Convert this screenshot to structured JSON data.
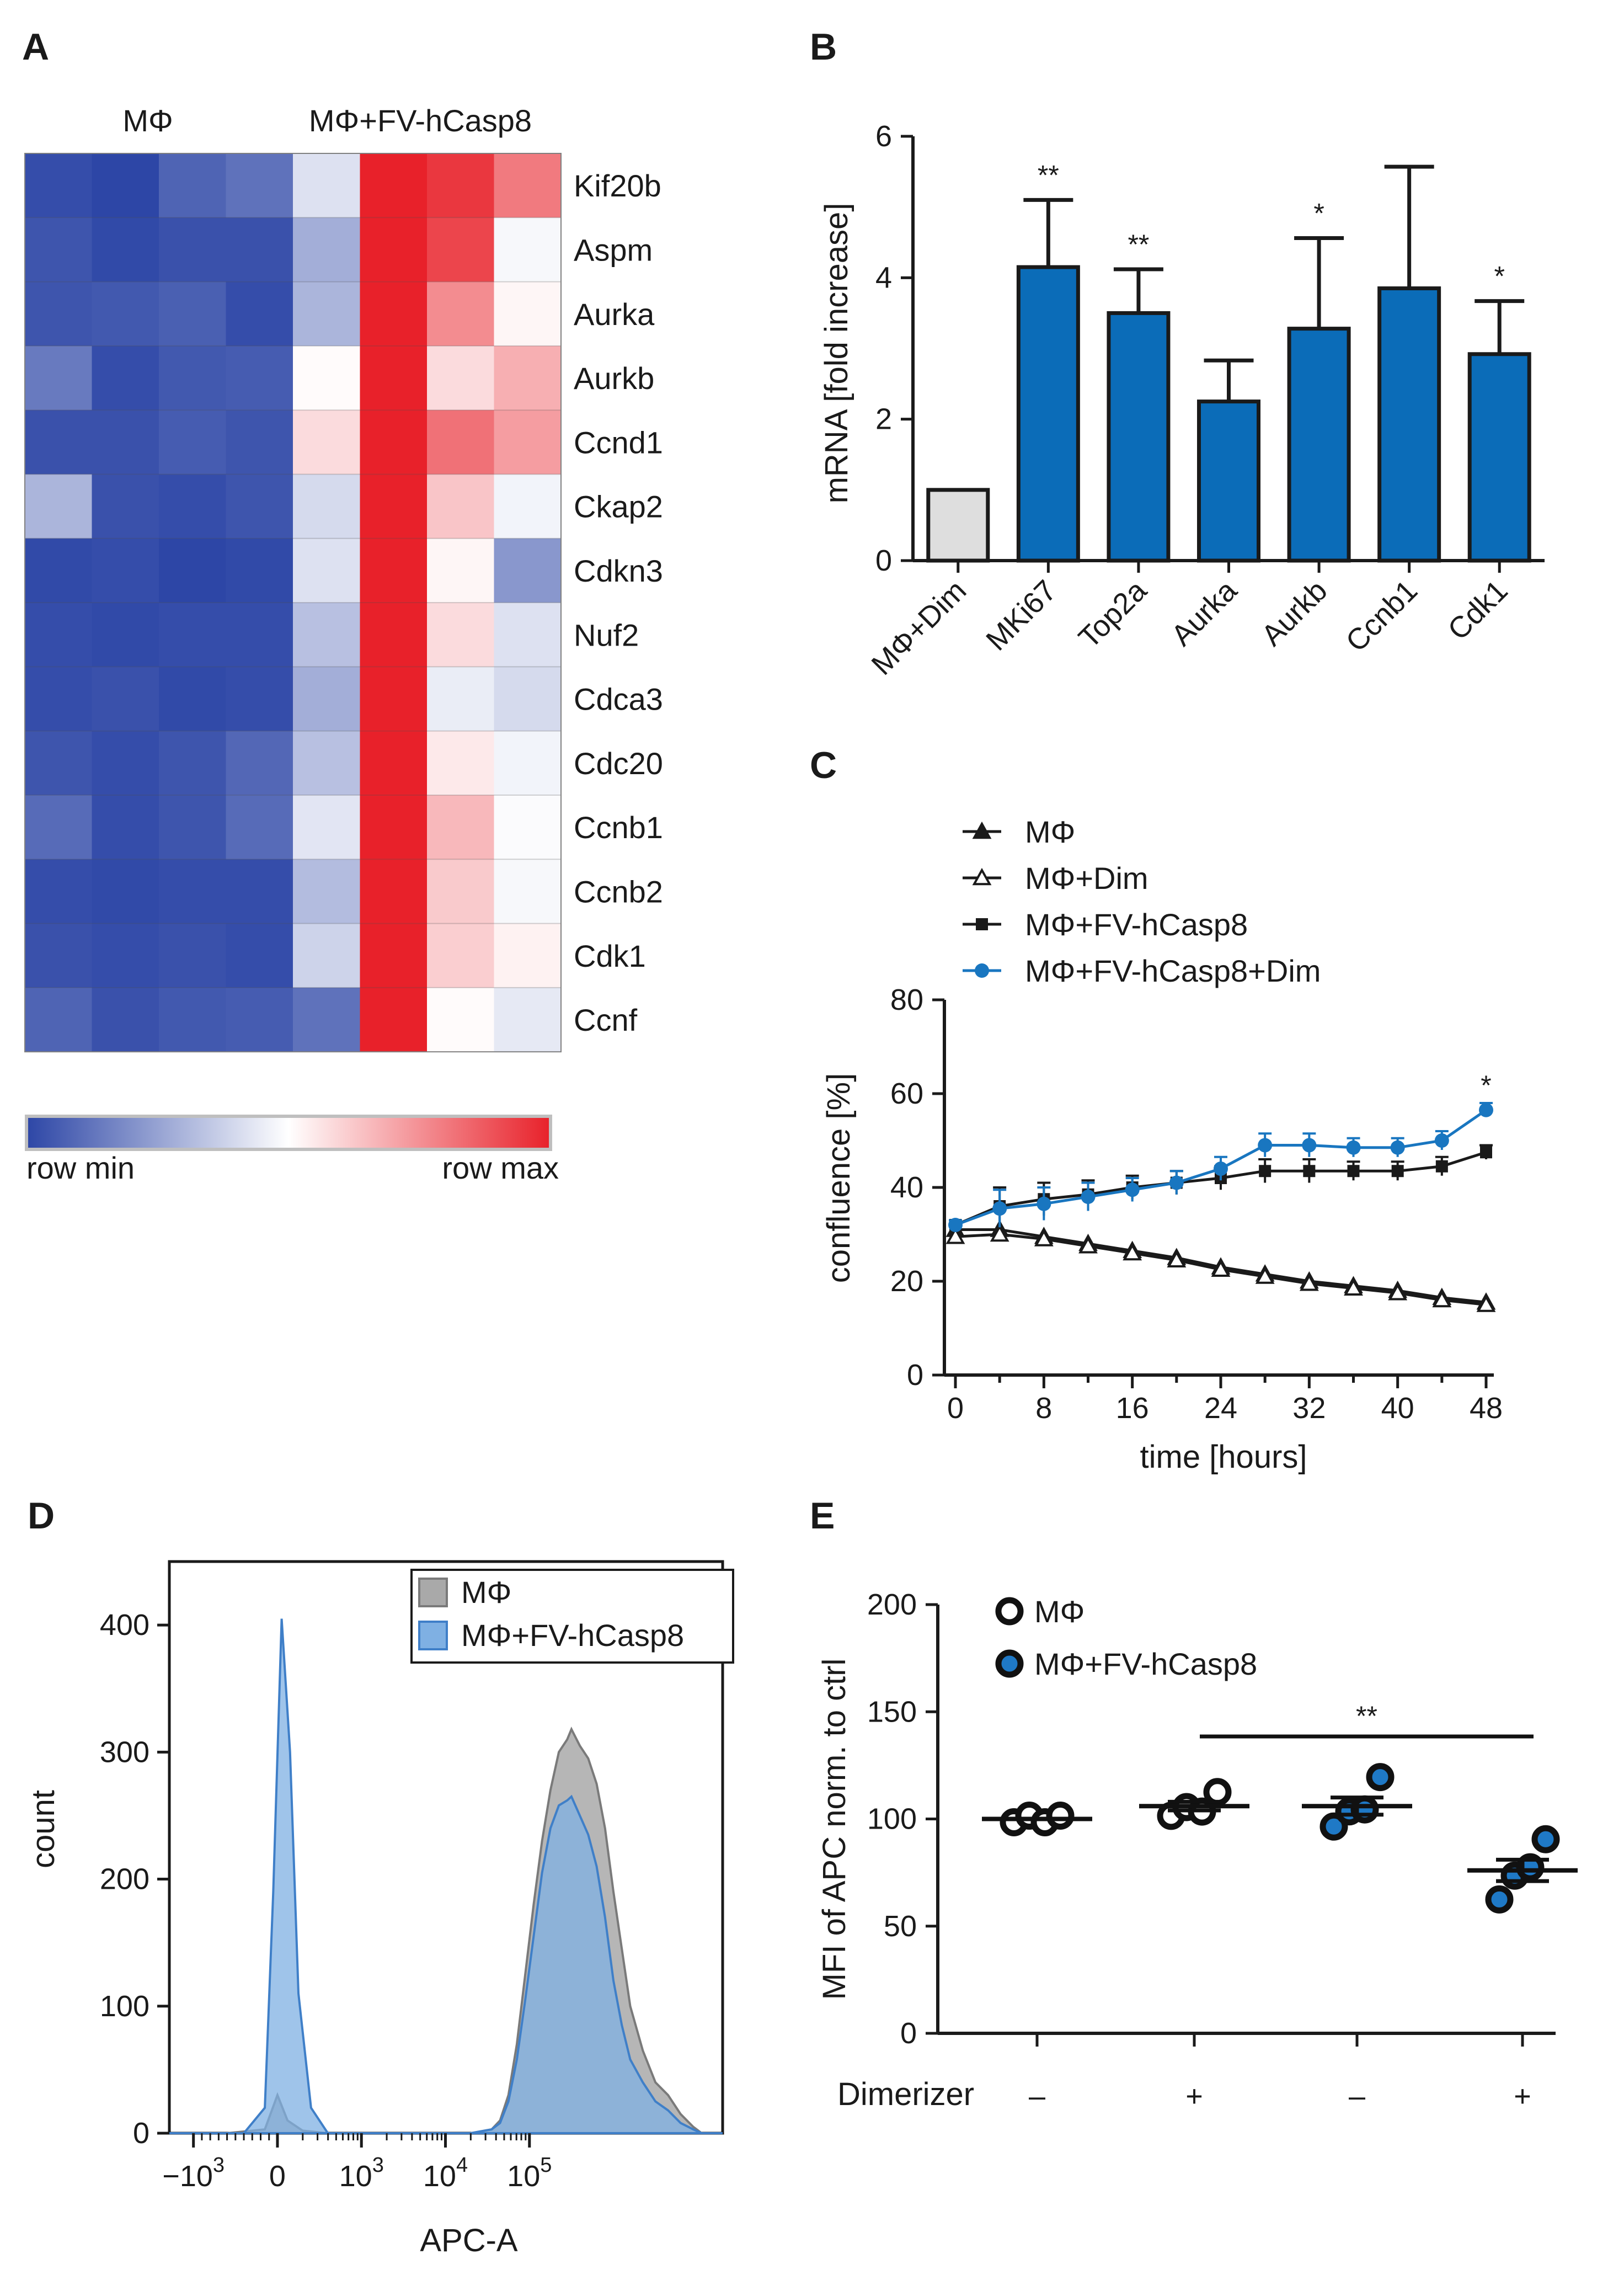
{
  "colors": {
    "low": "#2d46a6",
    "mid": "#ffffff",
    "high": "#e8212a",
    "bar_blue": "#0b6cb8",
    "bar_grey": "#dedede",
    "line_blue": "#1976c0",
    "hist_grey": "#a9a9a9",
    "hist_blue": "#7fb0e3",
    "dot_blue": "#1f79c6"
  },
  "chart_data": [
    {
      "panel": "A",
      "type": "heatmap",
      "group_labels": [
        "MΦ",
        "MΦ+FV-hCasp8"
      ],
      "rows": [
        "Kif20b",
        "Aspm",
        "Aurka",
        "Aurkb",
        "Ccnd1",
        "Ckap2",
        "Cdkn3",
        "Nuf2",
        "Cdca3",
        "Cdc20",
        "Ccnb1",
        "Ccnb2",
        "Cdk1",
        "Ccnf"
      ],
      "values": [
        [
          0.02,
          0.0,
          0.08,
          0.12,
          0.42,
          1.0,
          0.95,
          0.8
        ],
        [
          0.04,
          0.01,
          0.03,
          0.03,
          0.28,
          1.0,
          0.92,
          0.48
        ],
        [
          0.04,
          0.05,
          0.07,
          0.02,
          0.3,
          1.0,
          0.76,
          0.52
        ],
        [
          0.14,
          0.02,
          0.05,
          0.06,
          0.51,
          1.0,
          0.58,
          0.68
        ],
        [
          0.03,
          0.03,
          0.06,
          0.04,
          0.58,
          1.0,
          0.82,
          0.72
        ],
        [
          0.3,
          0.03,
          0.02,
          0.04,
          0.4,
          1.0,
          0.63,
          0.47
        ],
        [
          0.01,
          0.02,
          0.0,
          0.01,
          0.42,
          1.0,
          0.52,
          0.22
        ],
        [
          0.02,
          0.01,
          0.02,
          0.02,
          0.33,
          1.0,
          0.58,
          0.42
        ],
        [
          0.02,
          0.03,
          0.01,
          0.02,
          0.28,
          1.0,
          0.45,
          0.4
        ],
        [
          0.04,
          0.02,
          0.04,
          0.09,
          0.33,
          1.0,
          0.55,
          0.47
        ],
        [
          0.1,
          0.02,
          0.04,
          0.1,
          0.43,
          1.0,
          0.66,
          0.49
        ],
        [
          0.02,
          0.01,
          0.02,
          0.02,
          0.32,
          1.0,
          0.62,
          0.48
        ],
        [
          0.03,
          0.02,
          0.03,
          0.02,
          0.38,
          1.0,
          0.61,
          0.53
        ],
        [
          0.08,
          0.03,
          0.05,
          0.06,
          0.12,
          1.0,
          0.51,
          0.44
        ]
      ],
      "scale_labels": [
        "row min",
        "row max"
      ]
    },
    {
      "panel": "B",
      "type": "bar",
      "categories": [
        "MΦ+Dim",
        "MKi67",
        "Top2a",
        "Aurka",
        "Aurkb",
        "Ccnb1",
        "Cdk1"
      ],
      "values": [
        1.0,
        4.15,
        3.5,
        2.25,
        3.28,
        3.85,
        2.92
      ],
      "errors": [
        0,
        0.95,
        0.62,
        0.58,
        1.28,
        1.72,
        0.75
      ],
      "significance": [
        "",
        "**",
        "**",
        "",
        "*",
        "",
        "*"
      ],
      "ylabel": "mRNA [fold increase]",
      "ylim": [
        0,
        6
      ],
      "yticks": [
        0,
        2,
        4,
        6
      ]
    },
    {
      "panel": "C",
      "type": "line",
      "x": [
        0,
        4,
        8,
        12,
        16,
        20,
        24,
        28,
        32,
        36,
        40,
        44,
        48
      ],
      "series": [
        {
          "name": "MΦ",
          "marker": "filled-triangle",
          "values": [
            31,
            31,
            29.5,
            28,
            26.5,
            25,
            23,
            21.5,
            20,
            19,
            18,
            16.5,
            15.5
          ]
        },
        {
          "name": "MΦ+Dim",
          "marker": "open-triangle",
          "values": [
            29.5,
            30,
            29,
            27.5,
            26,
            24.5,
            22.5,
            21,
            19.5,
            18.5,
            17.5,
            16,
            15
          ]
        },
        {
          "name": "MΦ+FV-hCasp8",
          "marker": "filled-square",
          "values": [
            32,
            36,
            37.5,
            38.5,
            40,
            41,
            42,
            43.5,
            43.5,
            43.5,
            43.5,
            44.5,
            47.5
          ]
        },
        {
          "name": "MΦ+FV-hCasp8+Dim",
          "marker": "filled-circle",
          "values": [
            32,
            35.5,
            36.5,
            38,
            39.5,
            41,
            44,
            49,
            49,
            48.5,
            48.5,
            50,
            56.5
          ]
        }
      ],
      "errors": [
        1,
        4,
        3.5,
        3,
        2.5,
        2.5,
        2.5,
        2.5,
        2.5,
        2,
        2,
        2,
        1.5
      ],
      "significance_at_48": "*",
      "xlabel": "time [hours]",
      "ylabel": "confluence [%]",
      "xticks": [
        0,
        8,
        16,
        24,
        32,
        40,
        48
      ],
      "xlim": [
        0,
        48
      ],
      "ylim": [
        0,
        80
      ],
      "yticks": [
        0,
        20,
        40,
        60,
        80
      ]
    },
    {
      "panel": "D",
      "type": "area",
      "legend": [
        "MΦ",
        "MΦ+FV-hCasp8"
      ],
      "xlabel": "APC-A",
      "ylabel": "count",
      "ylim": [
        0,
        450
      ],
      "yticks": [
        0,
        100,
        200,
        300,
        400
      ],
      "xticks": [
        "-10^3",
        "0",
        "10^3",
        "10^4",
        "10^5"
      ],
      "x_scale": "biexponential",
      "series": [
        {
          "name": "MΦ",
          "x": [
            -1.3,
            -0.6,
            -0.15,
            0,
            0.12,
            0.3,
            0.6,
            0.9,
            1.5,
            2.0,
            2.3,
            2.55,
            2.65,
            2.75,
            2.85,
            2.95,
            3.05,
            3.15,
            3.25,
            3.35,
            3.45,
            3.5,
            3.6,
            3.7,
            3.8,
            3.9,
            4.0,
            4.1,
            4.2,
            4.35,
            4.5,
            4.65,
            4.8,
            4.95,
            5.05,
            5.3
          ],
          "values": [
            0,
            0,
            3,
            30,
            10,
            2,
            0,
            0,
            0,
            0,
            0,
            3,
            10,
            30,
            70,
            125,
            180,
            230,
            270,
            300,
            310,
            318,
            305,
            295,
            275,
            240,
            190,
            145,
            100,
            65,
            40,
            30,
            15,
            5,
            0,
            0
          ]
        },
        {
          "name": "MΦ+FV-hCasp8",
          "x": [
            -1.3,
            -0.4,
            -0.15,
            -0.05,
            0.05,
            0.15,
            0.25,
            0.4,
            0.6,
            0.9,
            1.5,
            2.0,
            2.3,
            2.55,
            2.65,
            2.75,
            2.85,
            2.95,
            3.05,
            3.15,
            3.25,
            3.35,
            3.45,
            3.5,
            3.6,
            3.7,
            3.8,
            3.9,
            4.0,
            4.1,
            4.2,
            4.35,
            4.5,
            4.65,
            4.8,
            4.95,
            5.05,
            5.3
          ],
          "values": [
            0,
            0,
            20,
            190,
            405,
            300,
            110,
            20,
            0,
            0,
            0,
            0,
            0,
            3,
            8,
            25,
            58,
            105,
            155,
            205,
            240,
            258,
            262,
            265,
            250,
            235,
            210,
            170,
            120,
            85,
            58,
            40,
            25,
            18,
            8,
            3,
            0,
            0
          ]
        }
      ]
    },
    {
      "panel": "E",
      "type": "scatter",
      "legend": [
        "MΦ",
        "MΦ+FV-hCasp8"
      ],
      "ylabel": "MFI of APC norm. to ctrl",
      "ylim": [
        0,
        200
      ],
      "yticks": [
        0,
        50,
        100,
        150,
        200
      ],
      "xrow_label": "Dimerizer",
      "groups": [
        {
          "dimerizer": "–",
          "cells": "MΦ",
          "points": [
            100,
            100,
            100,
            100
          ],
          "mean": 100,
          "sem": 0
        },
        {
          "dimerizer": "+",
          "cells": "MΦ",
          "points": [
            103,
            104,
            105,
            111
          ],
          "mean": 106,
          "sem": 2
        },
        {
          "dimerizer": "–",
          "cells": "MΦ+FV-hCasp8",
          "points": [
            98,
            102,
            106,
            118
          ],
          "mean": 106,
          "sem": 4
        },
        {
          "dimerizer": "+",
          "cells": "MΦ+FV-hCasp8",
          "points": [
            64,
            72,
            79,
            89
          ],
          "mean": 76,
          "sem": 5
        }
      ],
      "significance": {
        "between": [
          2,
          4
        ],
        "label": "**"
      }
    }
  ],
  "panels": {
    "A": "A",
    "B": "B",
    "C": "C",
    "D": "D",
    "E": "E"
  }
}
